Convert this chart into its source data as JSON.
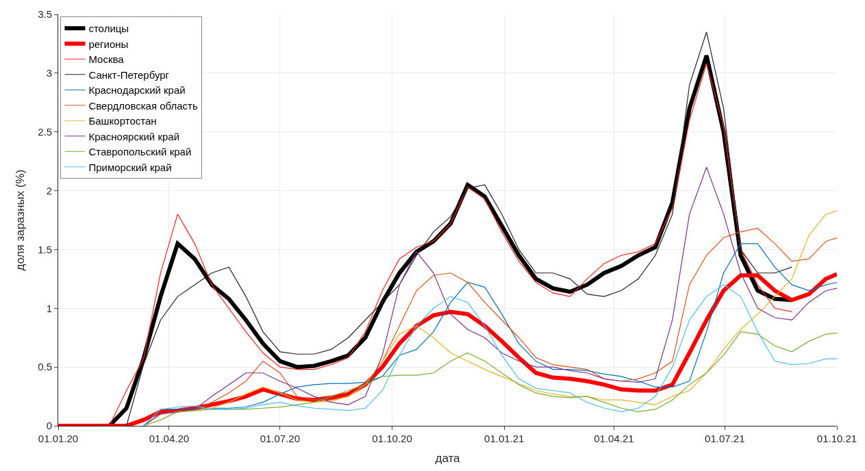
{
  "chart_data": {
    "type": "line",
    "xlabel": "дата",
    "ylabel": "доля заразных (%)",
    "x": [
      "2020-01-01",
      "2020-01-15",
      "2020-01-29",
      "2020-02-12",
      "2020-02-26",
      "2020-03-11",
      "2020-03-25",
      "2020-04-08",
      "2020-04-22",
      "2020-05-06",
      "2020-05-20",
      "2020-06-03",
      "2020-06-17",
      "2020-07-01",
      "2020-07-15",
      "2020-07-29",
      "2020-08-12",
      "2020-08-26",
      "2020-09-09",
      "2020-09-23",
      "2020-10-07",
      "2020-10-21",
      "2020-11-04",
      "2020-11-18",
      "2020-12-02",
      "2020-12-16",
      "2020-12-30",
      "2021-01-13",
      "2021-01-27",
      "2021-02-10",
      "2021-02-24",
      "2021-03-10",
      "2021-03-24",
      "2021-04-07",
      "2021-04-21",
      "2021-05-05",
      "2021-05-19",
      "2021-06-02",
      "2021-06-16",
      "2021-06-30",
      "2021-07-14",
      "2021-07-28",
      "2021-08-11",
      "2021-08-25",
      "2021-09-08",
      "2021-09-22",
      "2021-10-01"
    ],
    "series": [
      {
        "name": "столицы",
        "color": "#000000",
        "values": [
          null,
          null,
          null,
          0,
          0.15,
          0.57,
          1.1,
          1.55,
          1.42,
          1.2,
          1.08,
          0.9,
          0.7,
          0.55,
          0.5,
          0.51,
          0.55,
          0.6,
          0.75,
          1.05,
          1.3,
          1.48,
          1.57,
          1.72,
          2.05,
          1.95,
          1.7,
          1.45,
          1.25,
          1.17,
          1.14,
          1.2,
          1.3,
          1.36,
          1.45,
          1.52,
          1.9,
          2.7,
          3.15,
          2.5,
          1.45,
          1.15,
          1.08,
          1.07,
          null,
          null,
          null
        ]
      },
      {
        "name": "регионы",
        "color": "#ff0000",
        "values": [
          0,
          0,
          0,
          0,
          0,
          0.05,
          0.12,
          0.13,
          0.15,
          0.18,
          0.21,
          0.25,
          0.31,
          0.27,
          0.23,
          0.22,
          0.24,
          0.27,
          0.35,
          0.5,
          0.7,
          0.85,
          0.94,
          0.97,
          0.95,
          0.85,
          0.72,
          0.58,
          0.45,
          0.41,
          0.4,
          0.38,
          0.35,
          0.31,
          0.3,
          0.3,
          0.35,
          0.62,
          0.9,
          1.15,
          1.28,
          1.28,
          1.15,
          1.07,
          1.12,
          1.25,
          1.29
        ]
      },
      {
        "name": "Москва",
        "color": "#ff2020",
        "values": [
          null,
          null,
          null,
          0,
          0.3,
          0.57,
          1.3,
          1.8,
          1.55,
          1.2,
          1.0,
          0.8,
          0.62,
          0.5,
          0.48,
          0.48,
          0.52,
          0.58,
          0.8,
          1.15,
          1.42,
          1.52,
          1.57,
          1.72,
          2.03,
          1.93,
          1.65,
          1.4,
          1.22,
          1.13,
          1.1,
          1.25,
          1.38,
          1.45,
          1.48,
          1.55,
          1.85,
          2.6,
          3.08,
          2.55,
          1.5,
          1.2,
          1.0,
          0.97,
          null,
          null,
          null
        ]
      },
      {
        "name": "Санкт-Петербург",
        "color": "#222222",
        "values": [
          null,
          null,
          null,
          null,
          0,
          0.52,
          0.9,
          1.1,
          1.2,
          1.3,
          1.35,
          1.1,
          0.8,
          0.63,
          0.61,
          0.61,
          0.65,
          0.75,
          0.9,
          1.05,
          1.2,
          1.45,
          1.65,
          1.78,
          2.02,
          2.05,
          1.8,
          1.5,
          1.3,
          1.3,
          1.25,
          1.12,
          1.1,
          1.15,
          1.25,
          1.45,
          1.8,
          2.9,
          3.35,
          2.7,
          1.5,
          1.3,
          1.3,
          1.35,
          null,
          null,
          null
        ]
      },
      {
        "name": "Краснодарский край",
        "color": "#0072bd",
        "values": [
          null,
          null,
          null,
          null,
          null,
          0,
          0.14,
          0.14,
          0.15,
          0.15,
          0.15,
          0.16,
          0.2,
          0.27,
          0.33,
          0.35,
          0.36,
          0.36,
          0.37,
          0.42,
          0.6,
          0.65,
          0.8,
          1.05,
          1.22,
          1.18,
          0.95,
          0.7,
          0.55,
          0.48,
          0.48,
          0.47,
          0.44,
          0.42,
          0.38,
          0.33,
          0.33,
          0.38,
          0.8,
          1.3,
          1.55,
          1.55,
          1.35,
          1.2,
          1.15,
          1.2,
          1.22
        ]
      },
      {
        "name": "Свердловская область",
        "color": "#d95319",
        "values": [
          null,
          null,
          null,
          null,
          null,
          0,
          0.1,
          0.12,
          0.13,
          0.2,
          0.28,
          0.38,
          0.55,
          0.45,
          0.25,
          0.22,
          0.22,
          0.25,
          0.35,
          0.55,
          0.85,
          1.15,
          1.28,
          1.3,
          1.22,
          1.05,
          0.9,
          0.75,
          0.58,
          0.52,
          0.5,
          0.48,
          0.4,
          0.38,
          0.4,
          0.45,
          0.55,
          1.2,
          1.45,
          1.6,
          1.65,
          1.68,
          1.55,
          1.4,
          1.42,
          1.57,
          1.6
        ]
      },
      {
        "name": "Башкортостан",
        "color": "#edb120",
        "values": [
          null,
          null,
          null,
          null,
          null,
          0,
          0.1,
          0.12,
          0.13,
          0.15,
          0.2,
          0.27,
          0.33,
          0.28,
          0.22,
          0.2,
          0.21,
          0.25,
          0.35,
          0.55,
          0.78,
          0.85,
          0.75,
          0.62,
          0.55,
          0.48,
          0.42,
          0.36,
          0.3,
          0.27,
          0.25,
          0.25,
          0.22,
          0.22,
          0.2,
          0.18,
          0.25,
          0.3,
          0.45,
          0.65,
          0.82,
          0.95,
          1.1,
          1.25,
          1.62,
          1.8,
          1.83
        ]
      },
      {
        "name": "Красноярский край",
        "color": "#7e2f8e",
        "values": [
          null,
          null,
          null,
          null,
          null,
          0,
          0.1,
          0.12,
          0.14,
          0.25,
          0.35,
          0.45,
          0.45,
          0.38,
          0.32,
          0.25,
          0.2,
          0.18,
          0.25,
          0.6,
          1.2,
          1.48,
          1.3,
          0.95,
          0.82,
          0.75,
          0.62,
          0.55,
          0.5,
          0.5,
          0.47,
          0.45,
          0.4,
          0.38,
          0.37,
          0.4,
          0.9,
          1.8,
          2.2,
          1.8,
          1.3,
          1.0,
          0.92,
          0.9,
          1.05,
          1.15,
          1.17
        ]
      },
      {
        "name": "Ставропольский край",
        "color": "#77ac30",
        "values": [
          null,
          null,
          null,
          null,
          null,
          0,
          0.05,
          0.12,
          0.13,
          0.14,
          0.14,
          0.14,
          0.15,
          0.16,
          0.18,
          0.2,
          0.25,
          0.3,
          0.35,
          0.42,
          0.43,
          0.43,
          0.45,
          0.55,
          0.62,
          0.55,
          0.45,
          0.35,
          0.28,
          0.25,
          0.24,
          0.25,
          0.2,
          0.15,
          0.12,
          0.14,
          0.22,
          0.35,
          0.45,
          0.6,
          0.8,
          0.78,
          0.68,
          0.63,
          0.72,
          0.78,
          0.79
        ]
      },
      {
        "name": "Приморский край",
        "color": "#4dbeee",
        "values": [
          null,
          null,
          null,
          null,
          null,
          0,
          0.14,
          0.16,
          0.17,
          0.14,
          0.14,
          0.15,
          0.18,
          0.2,
          0.17,
          0.15,
          0.14,
          0.13,
          0.15,
          0.3,
          0.6,
          0.85,
          1.0,
          1.1,
          1.05,
          0.85,
          0.6,
          0.4,
          0.32,
          0.3,
          0.28,
          0.2,
          0.15,
          0.12,
          0.15,
          0.25,
          0.5,
          0.9,
          1.1,
          1.2,
          1.1,
          0.8,
          0.55,
          0.52,
          0.53,
          0.57,
          0.57
        ]
      }
    ],
    "xlim": [
      "2020-01-01",
      "2021-10-01"
    ],
    "xticks": [
      {
        "value": "2020-01-01",
        "label": "01.01.20"
      },
      {
        "value": "2020-04-01",
        "label": "01.04.20"
      },
      {
        "value": "2020-07-01",
        "label": "01.07.20"
      },
      {
        "value": "2020-10-01",
        "label": "01.10.20"
      },
      {
        "value": "2021-01-01",
        "label": "01.01.21"
      },
      {
        "value": "2021-04-01",
        "label": "01.04.21"
      },
      {
        "value": "2021-07-01",
        "label": "01.07.21"
      },
      {
        "value": "2021-10-01",
        "label": "01.10.21"
      }
    ],
    "ylim": [
      0,
      3.5
    ],
    "yticks": [
      0,
      0.5,
      1,
      1.5,
      2,
      2.5,
      3,
      3.5
    ],
    "grid": true,
    "legend": "top left",
    "marker": "none",
    "line_style": "solid"
  }
}
